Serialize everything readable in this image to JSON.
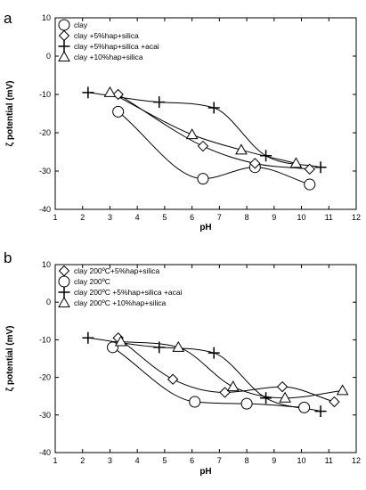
{
  "chart_data": [
    {
      "type": "scatter",
      "panel_label": "a",
      "xlabel": "pH",
      "ylabel": "ζ potential  (mV)",
      "xlim": [
        1,
        12
      ],
      "ylim": [
        -40,
        10
      ],
      "xticks": [
        "1",
        "2",
        "3",
        "4",
        "5",
        "6",
        "7",
        "8",
        "9",
        "10",
        "11",
        "12"
      ],
      "yticks": [
        "10",
        "0",
        "-10",
        "-20",
        "-30",
        "-40"
      ],
      "legend_position": "top-left",
      "series": [
        {
          "name": "clay",
          "marker": "circle",
          "points": [
            [
              3.3,
              -14.5
            ],
            [
              6.4,
              -32
            ],
            [
              8.3,
              -29
            ],
            [
              10.3,
              -33.5
            ]
          ]
        },
        {
          "name": "clay +5%hap+silica",
          "marker": "diamond",
          "points": [
            [
              3.3,
              -10
            ],
            [
              6.4,
              -23.5
            ],
            [
              8.3,
              -28
            ],
            [
              10.3,
              -29.5
            ]
          ]
        },
        {
          "name": "clay +5%hap+silica +acai",
          "marker": "plus",
          "points": [
            [
              2.2,
              -9.5
            ],
            [
              4.8,
              -12
            ],
            [
              6.8,
              -13.5
            ],
            [
              8.7,
              -26
            ],
            [
              10.7,
              -29
            ]
          ]
        },
        {
          "name": "clay +10%hap+silica",
          "marker": "triangle",
          "points": [
            [
              3,
              -9.5
            ],
            [
              6,
              -20.5
            ],
            [
              7.8,
              -24.5
            ],
            [
              9.8,
              -28
            ]
          ]
        }
      ]
    },
    {
      "type": "scatter",
      "panel_label": "b",
      "xlabel": "pH",
      "ylabel": "ζ potential  (mV)",
      "xlim": [
        1,
        12
      ],
      "ylim": [
        -40,
        10
      ],
      "xticks": [
        "1",
        "2",
        "3",
        "4",
        "5",
        "6",
        "7",
        "8",
        "9",
        "10",
        "11",
        "12"
      ],
      "yticks": [
        "10",
        "0",
        "-10",
        "-20",
        "-30",
        "-40"
      ],
      "legend_position": "top-left",
      "series": [
        {
          "name": "clay 200ºC+5%hap+silica",
          "marker": "diamond",
          "points": [
            [
              3.3,
              -9.5
            ],
            [
              5.3,
              -20.5
            ],
            [
              7.2,
              -24
            ],
            [
              9.3,
              -22.5
            ],
            [
              11.2,
              -26.5
            ]
          ]
        },
        {
          "name": "clay 200ºC",
          "marker": "circle",
          "points": [
            [
              3.1,
              -12
            ],
            [
              6.1,
              -26.5
            ],
            [
              8,
              -27
            ],
            [
              10.1,
              -28
            ]
          ]
        },
        {
          "name": "clay 200ºC +5%hap+silica +acai",
          "marker": "plus",
          "points": [
            [
              2.2,
              -9.5
            ],
            [
              4.8,
              -12
            ],
            [
              6.8,
              -13.5
            ],
            [
              8.7,
              -25.5
            ],
            [
              10.7,
              -29
            ]
          ]
        },
        {
          "name": "clay 200ºC +10%hap+silica",
          "marker": "triangle",
          "points": [
            [
              3.4,
              -10.5
            ],
            [
              5.5,
              -12
            ],
            [
              7.5,
              -22.5
            ],
            [
              9.4,
              -25.5
            ],
            [
              11.5,
              -23.5
            ]
          ]
        }
      ]
    }
  ]
}
